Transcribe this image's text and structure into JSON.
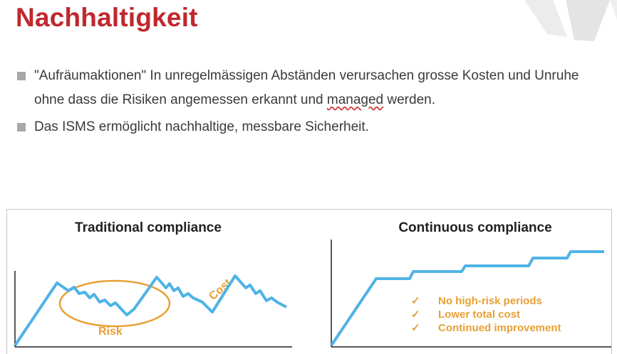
{
  "slide": {
    "title": "Nachhaltigkeit",
    "bullets": [
      {
        "pre": "\"Aufräumaktionen\" In unregelmässigen Abständen verursachen grosse Kosten und Unruhe ohne dass die Risiken angemessen erkannt und ",
        "underlined": "managed",
        "post": " werden."
      },
      {
        "pre": "Das ISMS ermöglicht nachhaltige, messbare Sicherheit.",
        "underlined": "",
        "post": ""
      }
    ]
  },
  "colors": {
    "title": "#c0282d",
    "line": "#4fb3e6",
    "accent": "#e8a033",
    "bullet_marker": "#a8a8a8"
  },
  "figure": {
    "left": {
      "heading": "Traditional compliance",
      "labels": {
        "risk": "Risk",
        "cost": "Cost"
      }
    },
    "right": {
      "heading": "Continuous compliance",
      "checklist": [
        {
          "icon": "check-icon",
          "mark": "✓",
          "text": "No high-risk periods"
        },
        {
          "icon": "check-icon",
          "mark": "✓",
          "text": "Lower total cost"
        },
        {
          "icon": "check-icon",
          "mark": "✓",
          "text": "Continued improvement"
        }
      ]
    }
  }
}
